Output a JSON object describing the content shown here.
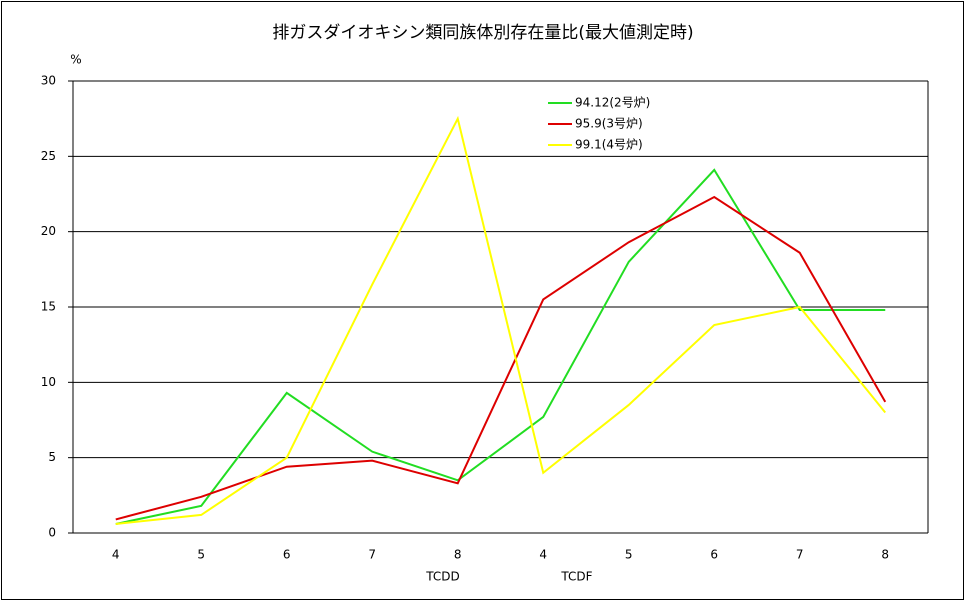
{
  "chart_data": {
    "type": "line",
    "title": "排ガスダイオキシン類同族体別存在量比(最大値測定時)",
    "y_unit": "%",
    "group_labels": [
      "TCDD",
      "TCDF"
    ],
    "categories": [
      "4",
      "5",
      "6",
      "7",
      "8",
      "4",
      "5",
      "6",
      "7",
      "8"
    ],
    "series": [
      {
        "name": "94.12(2号炉)",
        "color": "#22dd22",
        "values": [
          0.6,
          1.8,
          9.3,
          5.4,
          3.5,
          7.7,
          18.0,
          24.1,
          14.8,
          14.8
        ]
      },
      {
        "name": "95.9(3号炉)",
        "color": "#dd0000",
        "values": [
          0.9,
          2.4,
          4.4,
          4.8,
          3.3,
          15.5,
          19.3,
          22.3,
          18.6,
          8.7
        ]
      },
      {
        "name": "99.1(4号炉)",
        "color": "#ffff00",
        "values": [
          0.6,
          1.2,
          5.0,
          16.5,
          27.5,
          4.0,
          8.5,
          13.8,
          15.0,
          8.0
        ]
      }
    ],
    "ylim": [
      0,
      30
    ],
    "yticks": [
      0,
      5,
      10,
      15,
      20,
      25,
      30
    ],
    "grid": true
  }
}
